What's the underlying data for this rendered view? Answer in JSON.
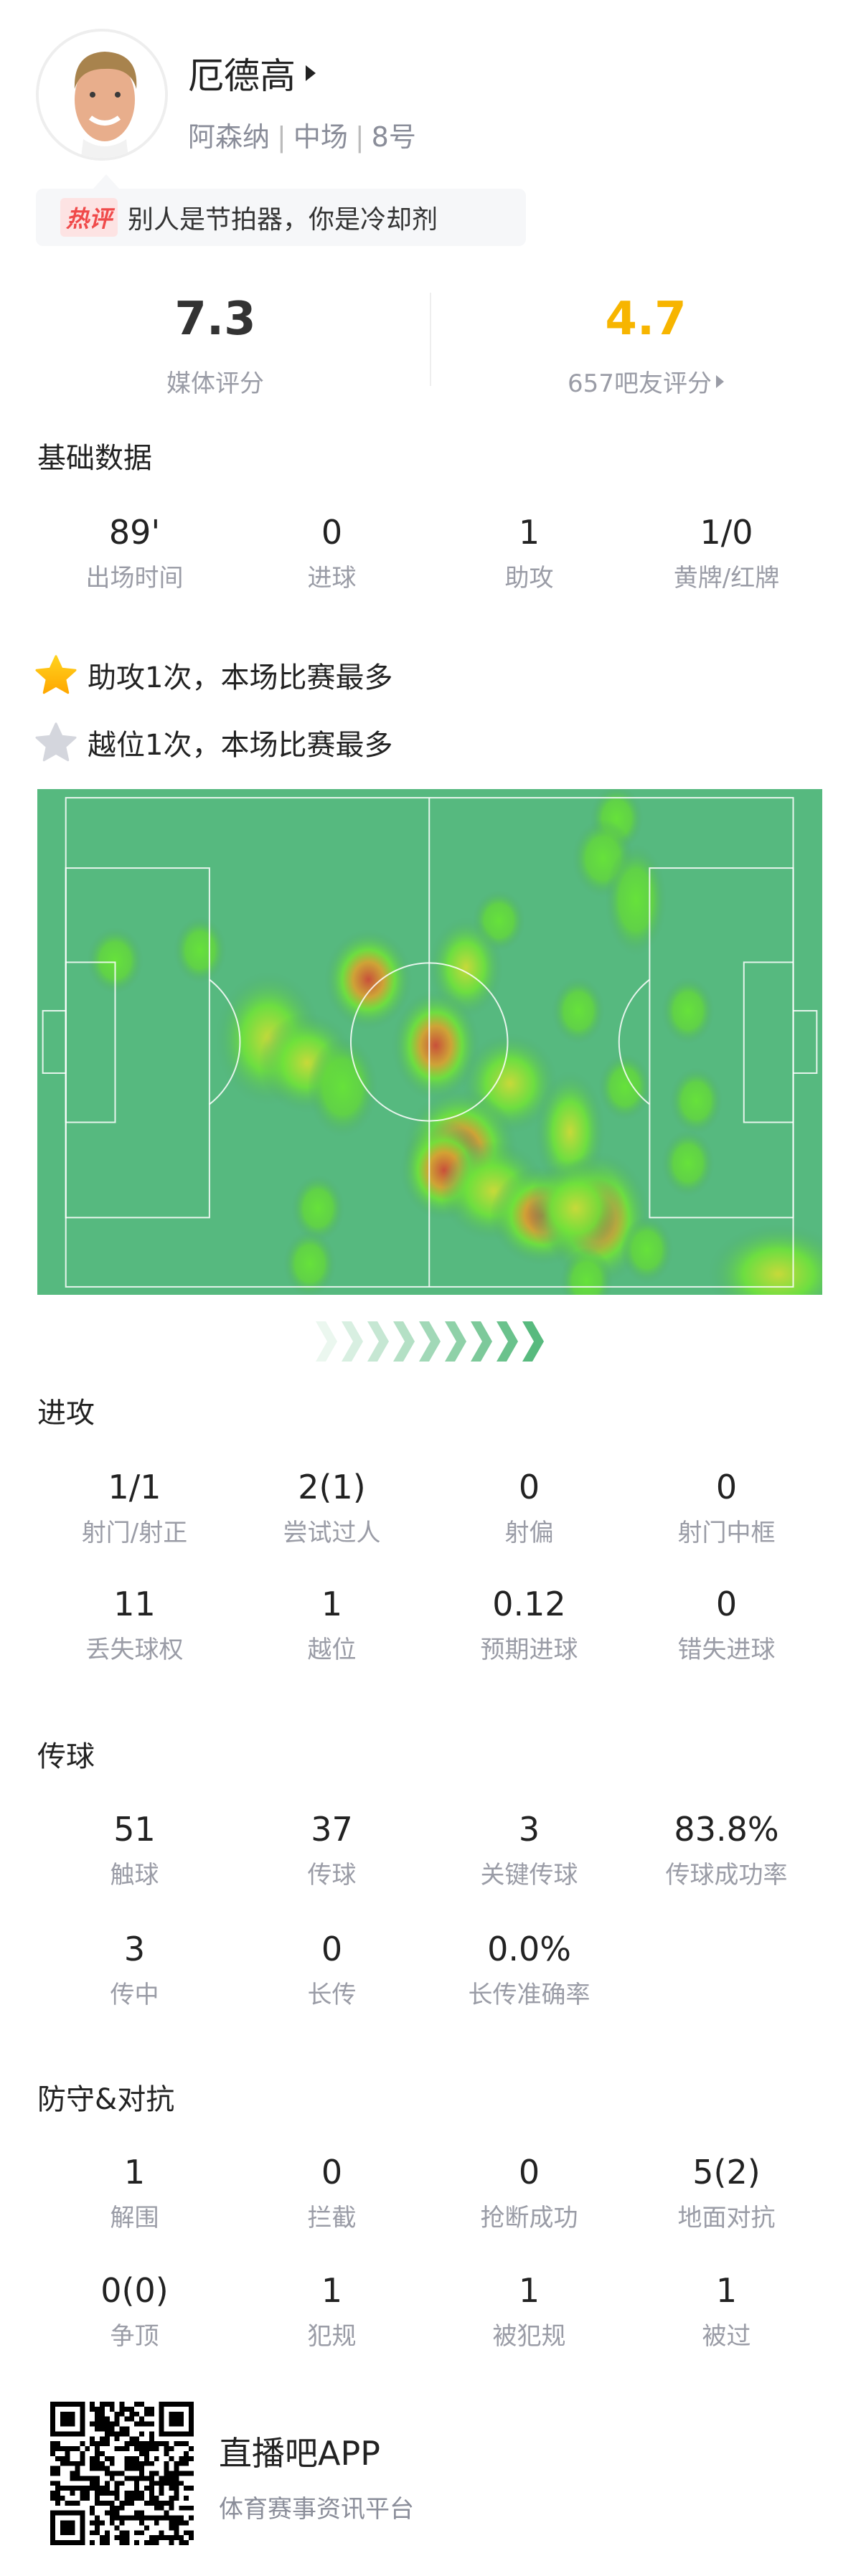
{
  "player": {
    "name": "厄德高",
    "team": "阿森纳",
    "position": "中场",
    "number": "8号",
    "avatar_icon": "player-photo"
  },
  "hot_comment": {
    "tag": "热评",
    "text": "别人是节拍器，你是冷却剂"
  },
  "ratings": {
    "media": {
      "value": "7.3",
      "label": "媒体评分"
    },
    "fans": {
      "value": "4.7",
      "label": "657吧友评分",
      "color": "#f7b500"
    }
  },
  "basic": {
    "title": "基础数据",
    "stats": [
      {
        "v": "89'",
        "l": "出场时间"
      },
      {
        "v": "0",
        "l": "进球"
      },
      {
        "v": "1",
        "l": "助攻"
      },
      {
        "v": "1/0",
        "l": "黄牌/红牌"
      }
    ]
  },
  "highlights": [
    {
      "text": "助攻1次，本场比赛最多",
      "icon": "gold-star"
    },
    {
      "text": "越位1次，本场比赛最多",
      "icon": "silver-star"
    }
  ],
  "attack": {
    "title": "进攻",
    "stats": [
      {
        "v": "1/1",
        "l": "射门/射正"
      },
      {
        "v": "2(1)",
        "l": "尝试过人"
      },
      {
        "v": "0",
        "l": "射偏"
      },
      {
        "v": "0",
        "l": "射门中框"
      },
      {
        "v": "11",
        "l": "丢失球权"
      },
      {
        "v": "1",
        "l": "越位"
      },
      {
        "v": "0.12",
        "l": "预期进球"
      },
      {
        "v": "0",
        "l": "错失进球"
      }
    ]
  },
  "passing": {
    "title": "传球",
    "stats": [
      {
        "v": "51",
        "l": "触球"
      },
      {
        "v": "37",
        "l": "传球"
      },
      {
        "v": "3",
        "l": "关键传球"
      },
      {
        "v": "83.8%",
        "l": "传球成功率"
      },
      {
        "v": "3",
        "l": "传中"
      },
      {
        "v": "0",
        "l": "长传"
      },
      {
        "v": "0.0%",
        "l": "长传准确率"
      }
    ]
  },
  "defense": {
    "title": "防守&对抗",
    "stats": [
      {
        "v": "1",
        "l": "解围"
      },
      {
        "v": "0",
        "l": "拦截"
      },
      {
        "v": "0",
        "l": "抢断成功"
      },
      {
        "v": "5(2)",
        "l": "地面对抗"
      },
      {
        "v": "0(0)",
        "l": "争顶"
      },
      {
        "v": "1",
        "l": "犯规"
      },
      {
        "v": "1",
        "l": "被犯规"
      },
      {
        "v": "1",
        "l": "被过"
      }
    ]
  },
  "footer": {
    "app": "直播吧APP",
    "tagline": "体育赛事资讯平台"
  },
  "colors": {
    "pitch": "#56b97f",
    "accent": "#f7b500",
    "hot_tag": "#f04a4a"
  }
}
